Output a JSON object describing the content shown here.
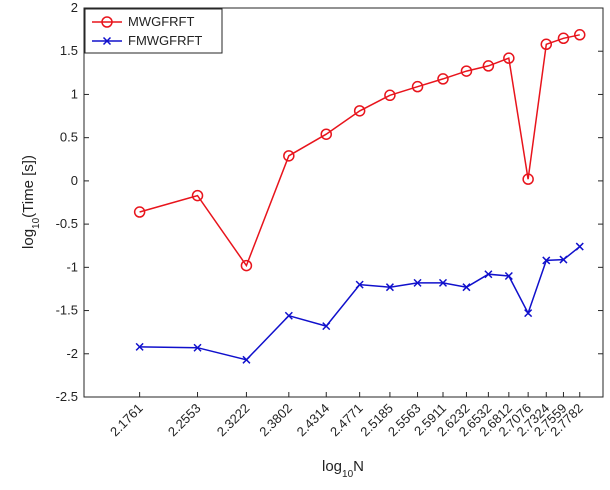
{
  "chart_data": {
    "type": "line",
    "x": [
      "2.1761",
      "2.2553",
      "2.3222",
      "2.3802",
      "2.4314",
      "2.4771",
      "2.5185",
      "2.5563",
      "2.5911",
      "2.6232",
      "2.6532",
      "2.6812",
      "2.7076",
      "2.7324",
      "2.7559",
      "2.7782"
    ],
    "xlabel": {
      "base": "log",
      "sub": "10",
      "rest": "N"
    },
    "ylabel": {
      "base": "log",
      "sub": "10",
      "rest": "(Time [s])"
    },
    "ylim": [
      -2.5,
      2
    ],
    "yticks": [
      "-2.5",
      "-2",
      "-1.5",
      "-1",
      "-0.5",
      "0",
      "0.5",
      "1",
      "1.5",
      "2"
    ],
    "grid": false,
    "legend_position": "top-left",
    "series": [
      {
        "name": "MWGFRFT",
        "color": "#e8141c",
        "marker": "circle",
        "values": [
          -0.36,
          -0.17,
          -0.98,
          0.29,
          0.54,
          0.81,
          0.99,
          1.09,
          1.18,
          1.27,
          1.33,
          1.42,
          0.02,
          1.58,
          1.65,
          1.69
        ]
      },
      {
        "name": "FMWGFRFT",
        "color": "#1010cc",
        "marker": "x",
        "values": [
          -1.92,
          -1.93,
          -2.07,
          -1.56,
          -1.68,
          -1.2,
          -1.23,
          -1.18,
          -1.18,
          -1.23,
          -1.08,
          -1.1,
          -1.53,
          -0.92,
          -0.91,
          -0.76
        ]
      }
    ]
  }
}
